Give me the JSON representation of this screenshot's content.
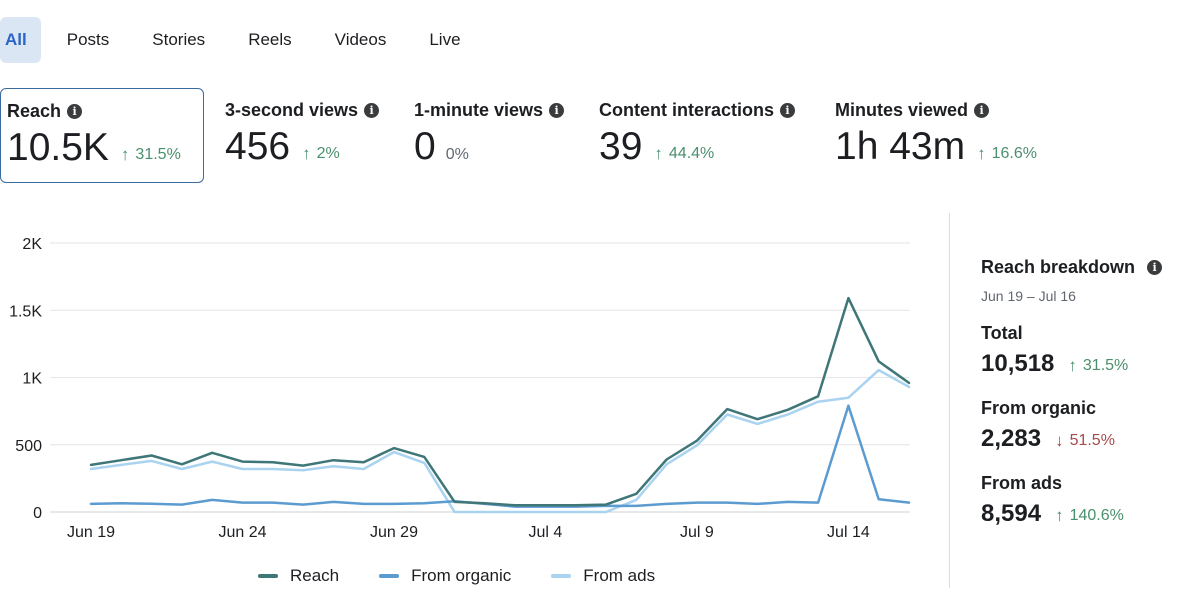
{
  "tabs": [
    {
      "label": "All",
      "active": true
    },
    {
      "label": "Posts",
      "active": false
    },
    {
      "label": "Stories",
      "active": false
    },
    {
      "label": "Reels",
      "active": false
    },
    {
      "label": "Videos",
      "active": false
    },
    {
      "label": "Live",
      "active": false
    }
  ],
  "metrics": [
    {
      "label": "Reach",
      "value": "10.5K",
      "change": "31.5%",
      "direction": "up",
      "selected": true
    },
    {
      "label": "3-second views",
      "value": "456",
      "change": "2%",
      "direction": "up",
      "selected": false
    },
    {
      "label": "1-minute views",
      "value": "0",
      "change": "0%",
      "direction": "none",
      "selected": false
    },
    {
      "label": "Content interactions",
      "value": "39",
      "change": "44.4%",
      "direction": "up",
      "selected": false
    },
    {
      "label": "Minutes viewed",
      "value": "1h 43m",
      "change": "16.6%",
      "direction": "up",
      "selected": false
    }
  ],
  "icons": {
    "info": "info-icon",
    "up": "arrow-up-icon",
    "down": "arrow-down-icon"
  },
  "colors": {
    "reach": "#3f7678",
    "organic": "#5b9bd0",
    "ads": "#a9d3ef",
    "positive": "#4a8f6e",
    "negative": "#a64a4a",
    "active_tab_bg": "#dbe6f5",
    "active_tab_text": "#2c64c6"
  },
  "chart_data": {
    "type": "line",
    "x_tick_labels": [
      "Jun 19",
      "Jun 24",
      "Jun 29",
      "Jul 4",
      "Jul 9",
      "Jul 14"
    ],
    "x_tick_indices": [
      0,
      5,
      10,
      15,
      20,
      25
    ],
    "y_ticks": [
      0,
      500,
      1000,
      1500,
      2000
    ],
    "y_tick_labels": [
      "0",
      "500",
      "1K",
      "1.5K",
      "2K"
    ],
    "ylim": [
      0,
      2000
    ],
    "grid": true,
    "legend_position": "bottom",
    "series": [
      {
        "name": "Reach",
        "color_key": "reach",
        "values": [
          350,
          385,
          420,
          355,
          440,
          375,
          370,
          345,
          385,
          370,
          475,
          410,
          75,
          65,
          50,
          50,
          50,
          55,
          135,
          390,
          530,
          765,
          690,
          760,
          860,
          1590,
          1120,
          960
        ]
      },
      {
        "name": "From organic",
        "color_key": "organic",
        "values": [
          60,
          65,
          62,
          55,
          90,
          70,
          70,
          55,
          75,
          60,
          60,
          65,
          80,
          60,
          40,
          40,
          40,
          45,
          45,
          60,
          70,
          70,
          60,
          75,
          70,
          790,
          95,
          70
        ]
      },
      {
        "name": "From ads",
        "color_key": "ads",
        "values": [
          320,
          350,
          380,
          320,
          375,
          320,
          320,
          310,
          340,
          320,
          445,
          365,
          0,
          0,
          0,
          0,
          0,
          0,
          90,
          355,
          495,
          725,
          655,
          725,
          820,
          850,
          1055,
          930
        ]
      }
    ]
  },
  "breakdown": {
    "title": "Reach breakdown",
    "date_range": "Jun 19 – Jul 16",
    "items": [
      {
        "label": "Total",
        "value": "10,518",
        "change": "31.5%",
        "direction": "up"
      },
      {
        "label": "From organic",
        "value": "2,283",
        "change": "51.5%",
        "direction": "down"
      },
      {
        "label": "From ads",
        "value": "8,594",
        "change": "140.6%",
        "direction": "up"
      }
    ]
  }
}
